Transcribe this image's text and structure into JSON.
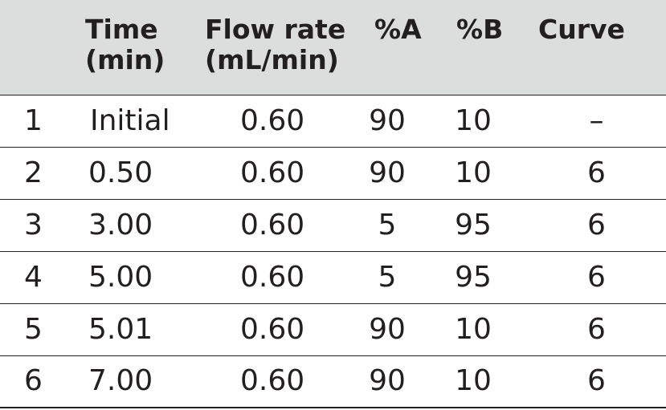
{
  "table": {
    "headers": {
      "row": "",
      "time_line1": "Time",
      "time_line2": "(min)",
      "flow_line1": "Flow rate",
      "flow_line2": "(mL/min)",
      "percent_a": "%A",
      "percent_b": "%B",
      "curve": "Curve"
    },
    "rows": [
      {
        "row": "1",
        "time": "Initial",
        "flow": "0.60",
        "a": "90",
        "b": "10",
        "curve": "–"
      },
      {
        "row": "2",
        "time": "0.50",
        "flow": "0.60",
        "a": "90",
        "b": "10",
        "curve": "6"
      },
      {
        "row": "3",
        "time": "3.00",
        "flow": "0.60",
        "a": "5",
        "b": "95",
        "curve": "6"
      },
      {
        "row": "4",
        "time": "5.00",
        "flow": "0.60",
        "a": "5",
        "b": "95",
        "curve": "6"
      },
      {
        "row": "5",
        "time": "5.01",
        "flow": "0.60",
        "a": "90",
        "b": "10",
        "curve": "6"
      },
      {
        "row": "6",
        "time": "7.00",
        "flow": "0.60",
        "a": "90",
        "b": "10",
        "curve": "6"
      }
    ],
    "colors": {
      "header_background": "#dcdddd",
      "text": "#231f20",
      "rule": "#231f20"
    }
  }
}
